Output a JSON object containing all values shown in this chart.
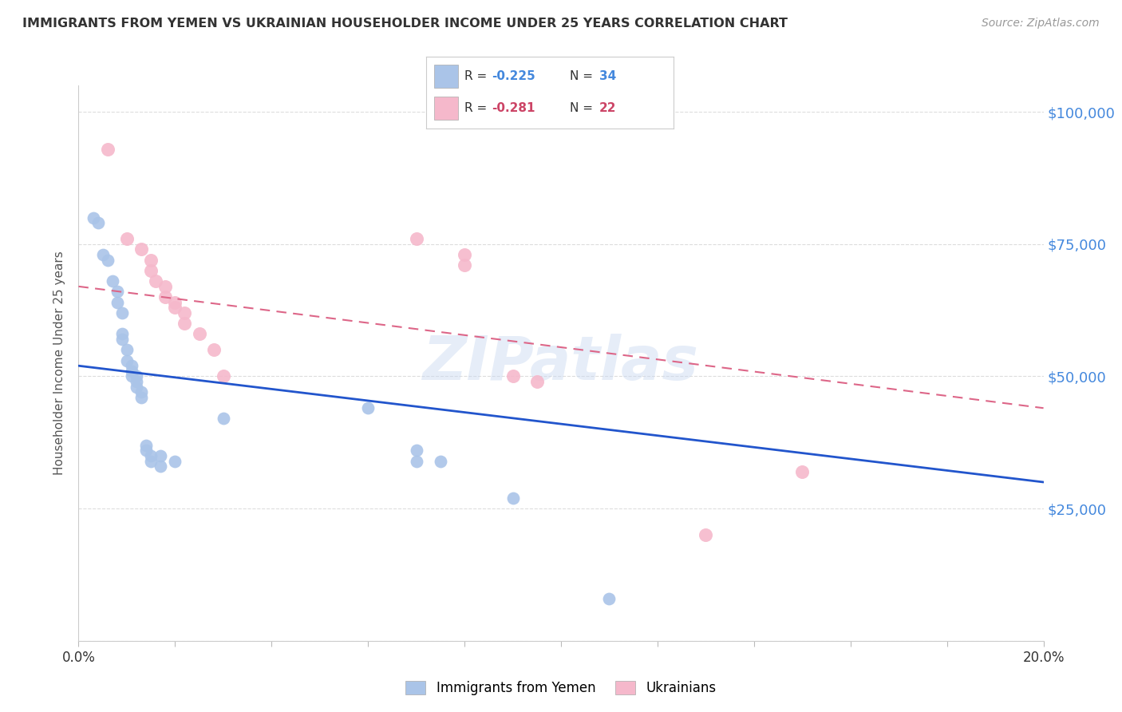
{
  "title": "IMMIGRANTS FROM YEMEN VS UKRAINIAN HOUSEHOLDER INCOME UNDER 25 YEARS CORRELATION CHART",
  "source": "Source: ZipAtlas.com",
  "ylabel": "Householder Income Under 25 years",
  "xmin": 0.0,
  "xmax": 0.2,
  "ymin": 0,
  "ymax": 105000,
  "yticks": [
    0,
    25000,
    50000,
    75000,
    100000
  ],
  "ytick_labels": [
    "",
    "$25,000",
    "$50,000",
    "$75,000",
    "$100,000"
  ],
  "xticks": [
    0.0,
    0.02,
    0.04,
    0.06,
    0.08,
    0.1,
    0.12,
    0.14,
    0.16,
    0.18,
    0.2
  ],
  "xtick_labels": [
    "0.0%",
    "",
    "",
    "",
    "",
    "",
    "",
    "",
    "",
    "",
    "20.0%"
  ],
  "legend_blue_r": "-0.225",
  "legend_blue_n": "34",
  "legend_pink_r": "-0.281",
  "legend_pink_n": "22",
  "watermark": "ZIPatlas",
  "blue_color": "#aac4e8",
  "pink_color": "#f5b8cb",
  "blue_line_color": "#2255cc",
  "pink_line_color": "#dd6688",
  "blue_scatter": [
    [
      0.003,
      80000
    ],
    [
      0.004,
      79000
    ],
    [
      0.005,
      73000
    ],
    [
      0.006,
      72000
    ],
    [
      0.007,
      68000
    ],
    [
      0.008,
      66000
    ],
    [
      0.008,
      64000
    ],
    [
      0.009,
      62000
    ],
    [
      0.009,
      58000
    ],
    [
      0.009,
      57000
    ],
    [
      0.01,
      55000
    ],
    [
      0.01,
      53000
    ],
    [
      0.011,
      52000
    ],
    [
      0.011,
      51000
    ],
    [
      0.011,
      50000
    ],
    [
      0.012,
      50000
    ],
    [
      0.012,
      49000
    ],
    [
      0.012,
      48000
    ],
    [
      0.013,
      47000
    ],
    [
      0.013,
      46000
    ],
    [
      0.014,
      37000
    ],
    [
      0.014,
      36000
    ],
    [
      0.015,
      35000
    ],
    [
      0.015,
      34000
    ],
    [
      0.017,
      35000
    ],
    [
      0.017,
      33000
    ],
    [
      0.02,
      34000
    ],
    [
      0.03,
      42000
    ],
    [
      0.06,
      44000
    ],
    [
      0.07,
      36000
    ],
    [
      0.07,
      34000
    ],
    [
      0.075,
      34000
    ],
    [
      0.09,
      27000
    ],
    [
      0.11,
      8000
    ]
  ],
  "pink_scatter": [
    [
      0.006,
      93000
    ],
    [
      0.01,
      76000
    ],
    [
      0.013,
      74000
    ],
    [
      0.015,
      72000
    ],
    [
      0.015,
      70000
    ],
    [
      0.016,
      68000
    ],
    [
      0.018,
      67000
    ],
    [
      0.018,
      65000
    ],
    [
      0.02,
      64000
    ],
    [
      0.02,
      63000
    ],
    [
      0.022,
      62000
    ],
    [
      0.022,
      60000
    ],
    [
      0.025,
      58000
    ],
    [
      0.028,
      55000
    ],
    [
      0.03,
      50000
    ],
    [
      0.07,
      76000
    ],
    [
      0.08,
      73000
    ],
    [
      0.08,
      71000
    ],
    [
      0.09,
      50000
    ],
    [
      0.095,
      49000
    ],
    [
      0.13,
      20000
    ],
    [
      0.15,
      32000
    ]
  ],
  "blue_trend_x": [
    0.0,
    0.2
  ],
  "blue_trend_y": [
    52000,
    30000
  ],
  "pink_trend_x": [
    0.0,
    0.2
  ],
  "pink_trend_y": [
    67000,
    44000
  ],
  "background_color": "#ffffff",
  "grid_color": "#dddddd"
}
